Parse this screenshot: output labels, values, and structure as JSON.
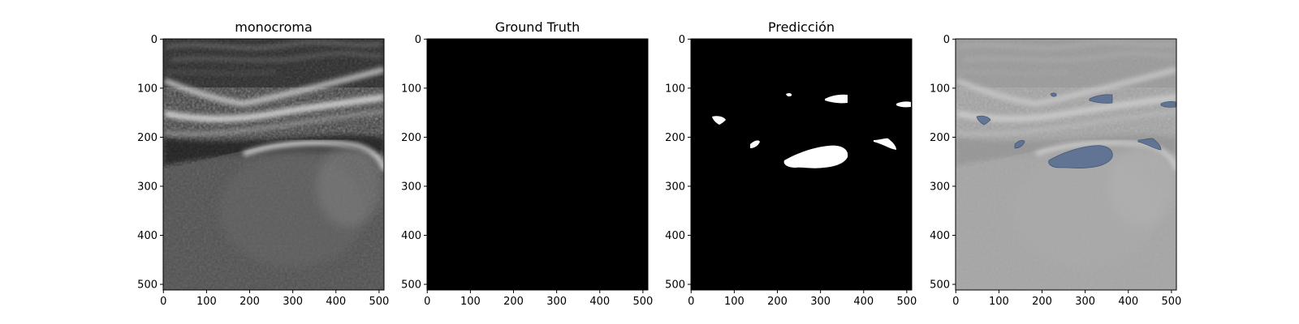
{
  "panels": [
    {
      "title": "monocroma",
      "kind": "ultrasound"
    },
    {
      "title": "Ground Truth",
      "kind": "black-mask"
    },
    {
      "title": "Predicción",
      "kind": "prediction-mask"
    },
    {
      "title": "",
      "kind": "overlay"
    }
  ],
  "axes": {
    "xticks": [
      "0",
      "100",
      "200",
      "300",
      "400",
      "500"
    ],
    "yticks": [
      "0",
      "100",
      "200",
      "300",
      "400",
      "500"
    ]
  },
  "colors": {
    "mask_background": "#000000",
    "mask_foreground": "#ffffff",
    "overlay_blob": "#5a6f92"
  }
}
